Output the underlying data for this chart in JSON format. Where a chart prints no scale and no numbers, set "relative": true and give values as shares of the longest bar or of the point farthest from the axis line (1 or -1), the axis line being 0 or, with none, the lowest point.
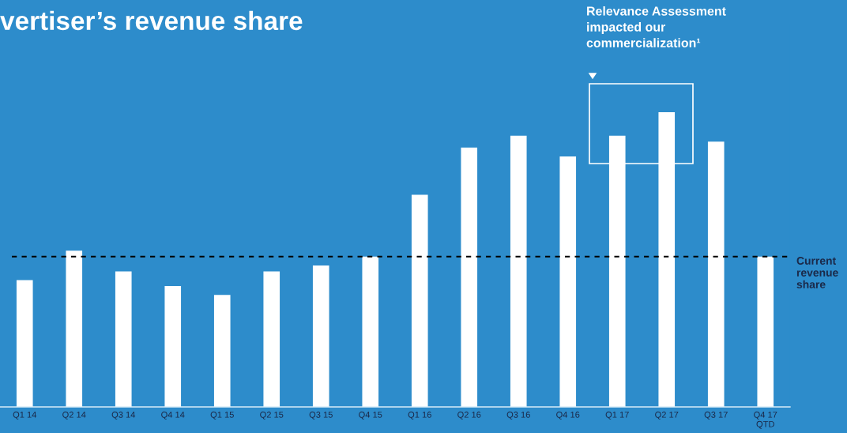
{
  "chart_data": {
    "type": "bar",
    "title": "vertiser’s revenue share",
    "relative": true,
    "categories": [
      "Q1 14",
      "Q2 14",
      "Q3 14",
      "Q4 14",
      "Q1 15",
      "Q2 15",
      "Q3 15",
      "Q4 15",
      "Q1 16",
      "Q2 16",
      "Q3 16",
      "Q4 16",
      "Q1 17",
      "Q2 17",
      "Q3 17",
      "Q4 17\nQTD"
    ],
    "values": [
      0.43,
      0.53,
      0.46,
      0.41,
      0.38,
      0.46,
      0.48,
      0.51,
      0.72,
      0.88,
      0.92,
      0.85,
      0.92,
      1,
      0.9,
      0.51
    ],
    "color": "#ffffff",
    "ref_lines": [
      {
        "axis": "y",
        "value": 0.51,
        "label": "Current\nrevenue\nshare",
        "color": "#000000",
        "line_style": "dashed"
      }
    ],
    "annotations": [
      "Relevance Assessment\nimpacted our\ncommercialization¹"
    ],
    "grid": false,
    "legend": false
  }
}
